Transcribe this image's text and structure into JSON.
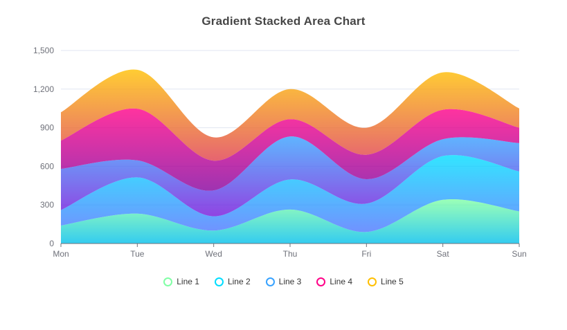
{
  "chart_data": {
    "type": "area",
    "title": "Gradient Stacked Area Chart",
    "stacked": true,
    "smooth": true,
    "grid": true,
    "legend_position": "bottom",
    "x": [
      "Mon",
      "Tue",
      "Wed",
      "Thu",
      "Fri",
      "Sat",
      "Sun"
    ],
    "ylim": [
      0,
      1500
    ],
    "y_ticks": [
      "0",
      "300",
      "600",
      "900",
      "1,200",
      "1,500"
    ],
    "series": [
      {
        "name": "Line 1",
        "values": [
          140,
          232,
          101,
          264,
          90,
          340,
          250
        ],
        "gradient": [
          "#80FFA5",
          "#01BFEC"
        ]
      },
      {
        "name": "Line 2",
        "values": [
          120,
          282,
          111,
          234,
          220,
          340,
          310
        ],
        "gradient": [
          "#00DDFF",
          "#4D77FF"
        ]
      },
      {
        "name": "Line 3",
        "values": [
          320,
          132,
          201,
          334,
          190,
          130,
          220
        ],
        "gradient": [
          "#37A2FF",
          "#7415DB"
        ]
      },
      {
        "name": "Line 4",
        "values": [
          220,
          402,
          231,
          134,
          190,
          230,
          120
        ],
        "gradient": [
          "#FF0087",
          "#87009D"
        ]
      },
      {
        "name": "Line 5",
        "values": [
          220,
          302,
          181,
          234,
          210,
          290,
          150
        ],
        "gradient": [
          "#FFBF00",
          "#E03E4C"
        ]
      }
    ],
    "area_opacity": 0.8,
    "title_color": "#464646",
    "axis_label_color": "#6E7079",
    "axis_line_color": "#6E7079",
    "grid_line_color": "#E0E6F1",
    "legend_text_color": "#333333",
    "background_color": "#FFFFFF"
  }
}
